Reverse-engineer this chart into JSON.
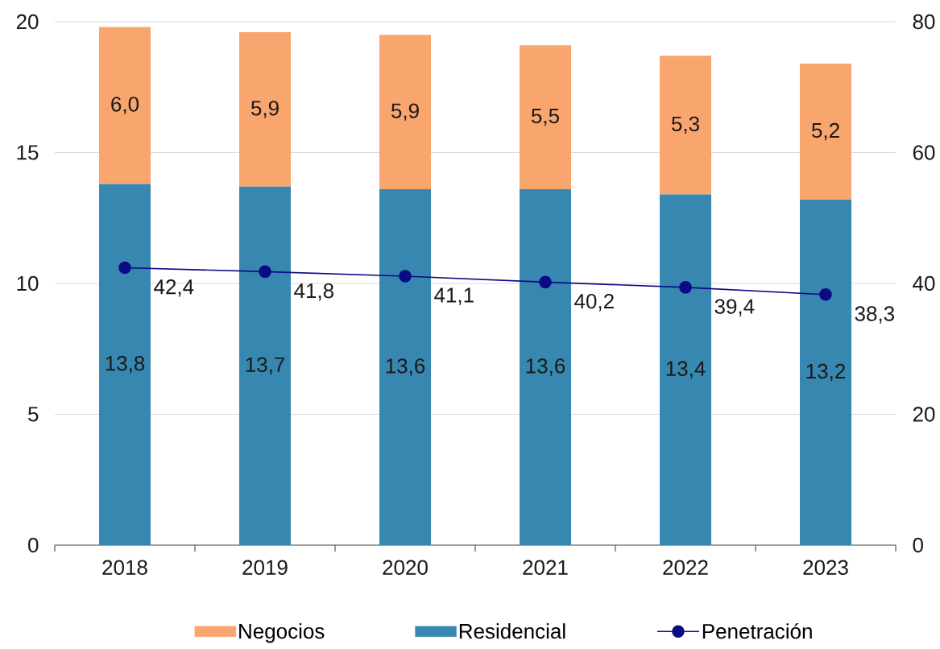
{
  "chart_data": {
    "type": "bar",
    "stacked": true,
    "categories": [
      "2018",
      "2019",
      "2020",
      "2021",
      "2022",
      "2023"
    ],
    "series": [
      {
        "name": "Residencial",
        "color": "#3787b0",
        "values": [
          13.8,
          13.7,
          13.6,
          13.6,
          13.4,
          13.2
        ],
        "value_labels": [
          "13,8",
          "13,7",
          "13,6",
          "13,6",
          "13,4",
          "13,2"
        ]
      },
      {
        "name": "Negocios",
        "color": "#f9a56e",
        "values": [
          6.0,
          5.9,
          5.9,
          5.5,
          5.3,
          5.2
        ],
        "value_labels": [
          "6,0",
          "5,9",
          "5,9",
          "5,5",
          "5,3",
          "5,2"
        ]
      },
      {
        "name": "Penetración",
        "type": "line",
        "axis": "y2",
        "color": "#0b0b85",
        "marker": "circle",
        "line_style": "solid",
        "values": [
          42.4,
          41.8,
          41.1,
          40.2,
          39.4,
          38.3
        ],
        "value_labels": [
          "42,4",
          "41,8",
          "41,1",
          "40,2",
          "39,4",
          "38,3"
        ]
      }
    ],
    "ylim": [
      0,
      20
    ],
    "yticks": [
      0,
      5,
      10,
      15,
      20
    ],
    "y2lim": [
      0,
      80
    ],
    "y2ticks": [
      0,
      20,
      40,
      60,
      80
    ],
    "grid": "y",
    "legend": "bottom"
  }
}
